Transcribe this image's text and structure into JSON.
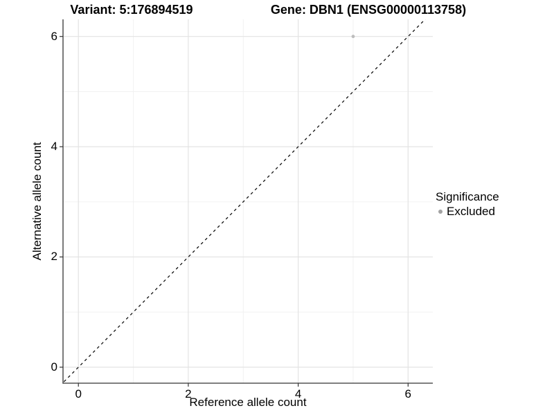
{
  "header": {
    "variant_title": "Variant: 5:176894519",
    "gene_title": "Gene: DBN1 (ENSG00000113758)"
  },
  "chart_data": {
    "type": "scatter",
    "xlabel": "Reference allele count",
    "ylabel": "Alternative allele count",
    "xlim": [
      -0.28,
      6.45
    ],
    "ylim": [
      -0.29,
      6.31
    ],
    "xticks": [
      0,
      2,
      4,
      6
    ],
    "yticks": [
      0,
      2,
      4,
      6
    ],
    "xtick_labels": [
      "0",
      "2",
      "4",
      "6"
    ],
    "ytick_labels": [
      "0",
      "2",
      "4",
      "6"
    ],
    "minor_xticks": [
      1,
      3,
      5
    ],
    "minor_yticks": [
      1,
      3,
      5
    ],
    "grid": "major+minor",
    "points": [
      {
        "x": 5,
        "y": 6,
        "series": "Excluded",
        "color": "#bdbdbd",
        "radius": 2.4
      }
    ],
    "reference_line": {
      "kind": "identity",
      "slope": 1,
      "intercept": 0,
      "style": "dashed",
      "color": "#111111"
    },
    "legend": {
      "title": "Significance",
      "position": "right",
      "entries": [
        {
          "label": "Excluded",
          "marker": "circle",
          "color": "#a3a3a3"
        }
      ]
    },
    "colors": {
      "panel_bg": "#ffffff",
      "grid_major": "#e3e3e3",
      "grid_minor": "#f0f0f0",
      "axis_line": "#333333",
      "tick_mark": "#333333",
      "text": "#000000"
    }
  }
}
